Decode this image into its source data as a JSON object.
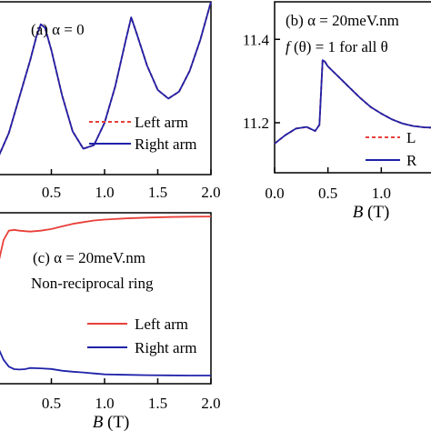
{
  "colors": {
    "red": "#e8403a",
    "blue": "#1f22a8",
    "purple": "#7a3f8e",
    "axis": "#000000"
  },
  "chart_data": [
    {
      "type": "line",
      "panel_label": "(a) α = 0",
      "xlim": [
        0,
        2.0
      ],
      "ylim": [
        0,
        1
      ],
      "x_ticks": [
        0.5,
        1.0,
        1.5,
        2.0
      ],
      "x_tick_labels": [
        "0.5",
        "1.0",
        "1.5",
        "2.0"
      ],
      "legend": {
        "placement": "bottom-right",
        "entries": [
          "Left arm",
          "Right arm"
        ]
      },
      "series": [
        {
          "name": "Left arm",
          "style": "dashed",
          "color": "red",
          "x": [
            0.0,
            0.1,
            0.2,
            0.3,
            0.36,
            0.4,
            0.44,
            0.5,
            0.6,
            0.7,
            0.8,
            0.9,
            1.0,
            1.1,
            1.2,
            1.25,
            1.3,
            1.4,
            1.5,
            1.6,
            1.7,
            1.8,
            1.9,
            2.0
          ],
          "y": [
            0.1,
            0.24,
            0.45,
            0.66,
            0.8,
            0.87,
            0.85,
            0.72,
            0.46,
            0.25,
            0.15,
            0.17,
            0.3,
            0.51,
            0.78,
            0.91,
            0.82,
            0.63,
            0.49,
            0.44,
            0.48,
            0.6,
            0.78,
            1.0
          ]
        },
        {
          "name": "Right arm",
          "style": "solid",
          "color": "blue",
          "x": [
            0.0,
            0.1,
            0.2,
            0.3,
            0.36,
            0.4,
            0.44,
            0.5,
            0.6,
            0.7,
            0.8,
            0.9,
            1.0,
            1.1,
            1.2,
            1.25,
            1.3,
            1.4,
            1.5,
            1.6,
            1.7,
            1.8,
            1.9,
            2.0
          ],
          "y": [
            0.1,
            0.24,
            0.45,
            0.66,
            0.8,
            0.87,
            0.85,
            0.72,
            0.46,
            0.25,
            0.15,
            0.17,
            0.3,
            0.51,
            0.78,
            0.91,
            0.82,
            0.63,
            0.49,
            0.44,
            0.48,
            0.6,
            0.78,
            1.0
          ]
        }
      ]
    },
    {
      "type": "line",
      "panel_label": "(b) α = 20meV.nm",
      "annotation": "f (θ) = 1 for all θ",
      "xlabel": "B (T)",
      "xlim": [
        0,
        1.5
      ],
      "ylim": [
        11.08,
        11.49
      ],
      "x_ticks": [
        0.0,
        0.5,
        1.0
      ],
      "x_tick_labels": [
        "0.0",
        "0.5",
        "1.0"
      ],
      "y_ticks": [
        11.2,
        11.4
      ],
      "y_tick_labels": [
        "11.2",
        "11.4"
      ],
      "legend": {
        "placement": "bottom-right",
        "entries": [
          "L",
          "R"
        ]
      },
      "series": [
        {
          "name": "L",
          "style": "dashed",
          "color": "red",
          "x": [
            0.0,
            0.1,
            0.2,
            0.3,
            0.38,
            0.42,
            0.45,
            0.47,
            0.5,
            0.6,
            0.7,
            0.8,
            0.9,
            1.0,
            1.1,
            1.2,
            1.3,
            1.4,
            1.5
          ],
          "y": [
            11.15,
            11.17,
            11.186,
            11.19,
            11.18,
            11.195,
            11.35,
            11.347,
            11.335,
            11.31,
            11.285,
            11.26,
            11.238,
            11.222,
            11.208,
            11.198,
            11.192,
            11.189,
            11.188
          ]
        },
        {
          "name": "R",
          "style": "solid",
          "color": "blue",
          "x": [
            0.0,
            0.1,
            0.2,
            0.3,
            0.38,
            0.42,
            0.45,
            0.47,
            0.5,
            0.6,
            0.7,
            0.8,
            0.9,
            1.0,
            1.1,
            1.2,
            1.3,
            1.4,
            1.5
          ],
          "y": [
            11.15,
            11.17,
            11.186,
            11.19,
            11.18,
            11.195,
            11.35,
            11.347,
            11.335,
            11.31,
            11.285,
            11.26,
            11.238,
            11.222,
            11.208,
            11.198,
            11.192,
            11.189,
            11.188
          ]
        }
      ]
    },
    {
      "type": "line",
      "panel_label": "(c) α = 20meV.nm",
      "annotation": "Non-reciprocal ring",
      "xlabel": "B (T)",
      "xlim": [
        0,
        2.0
      ],
      "ylim": [
        0,
        1
      ],
      "x_ticks": [
        0.5,
        1.0,
        1.5,
        2.0
      ],
      "x_tick_labels": [
        "0.5",
        "1.0",
        "1.5",
        "2.0"
      ],
      "legend": {
        "placement": "bottom-right",
        "entries": [
          "Left arm",
          "Right arm"
        ]
      },
      "series": [
        {
          "name": "Left arm",
          "style": "solid",
          "color": "red",
          "x": [
            0.0,
            0.05,
            0.1,
            0.15,
            0.2,
            0.3,
            0.4,
            0.5,
            0.6,
            0.7,
            0.8,
            0.9,
            1.0,
            1.2,
            1.4,
            1.6,
            1.8,
            2.0
          ],
          "y": [
            0.7,
            0.84,
            0.895,
            0.9,
            0.895,
            0.89,
            0.895,
            0.905,
            0.92,
            0.935,
            0.945,
            0.955,
            0.96,
            0.967,
            0.972,
            0.975,
            0.977,
            0.978
          ]
        },
        {
          "name": "Right arm",
          "style": "solid",
          "color": "blue",
          "x": [
            0.0,
            0.05,
            0.1,
            0.15,
            0.2,
            0.25,
            0.3,
            0.4,
            0.5,
            0.6,
            0.7,
            0.8,
            0.9,
            1.0,
            1.2,
            1.4,
            1.6,
            1.8,
            2.0
          ],
          "y": [
            0.21,
            0.14,
            0.1,
            0.085,
            0.083,
            0.085,
            0.092,
            0.09,
            0.086,
            0.076,
            0.07,
            0.066,
            0.06,
            0.055,
            0.052,
            0.05,
            0.049,
            0.048,
            0.048
          ]
        }
      ]
    }
  ]
}
